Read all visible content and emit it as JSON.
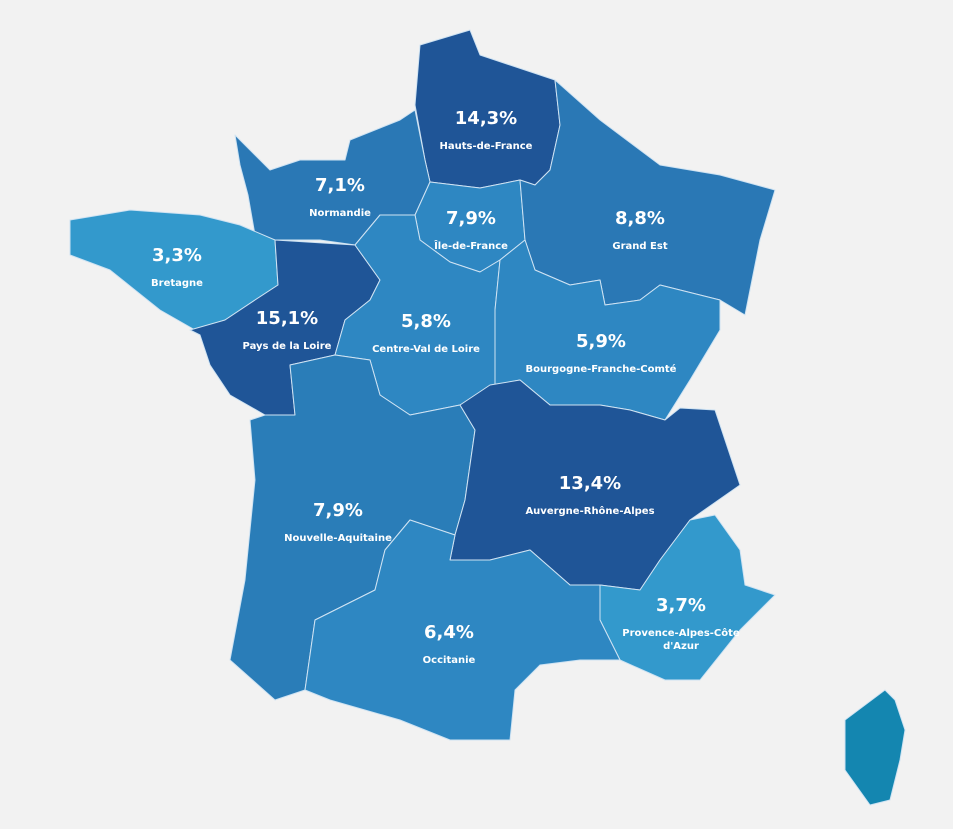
{
  "regions": [
    {
      "name": "Hauts-de-France",
      "value": "14,3%"
    },
    {
      "name": "Normandie",
      "value": "7,1%"
    },
    {
      "name": "Île-de-France",
      "value": "7,9%"
    },
    {
      "name": "Grand Est",
      "value": "8,8%"
    },
    {
      "name": "Bretagne",
      "value": "3,3%"
    },
    {
      "name": "Pays de la Loire",
      "value": "15,1%"
    },
    {
      "name": "Centre-Val de Loire",
      "value": "5,8%"
    },
    {
      "name": "Bourgogne-Franche-Comté",
      "value": "5,9%"
    },
    {
      "name": "Nouvelle-Aquitaine",
      "value": "7,9%"
    },
    {
      "name": "Auvergne-Rhône-Alpes",
      "value": "13,4%"
    },
    {
      "name": "Provence-Alpes-Côte d'Azur",
      "value": "3,7%"
    },
    {
      "name": "Occitanie",
      "value": "6,4%"
    }
  ]
}
